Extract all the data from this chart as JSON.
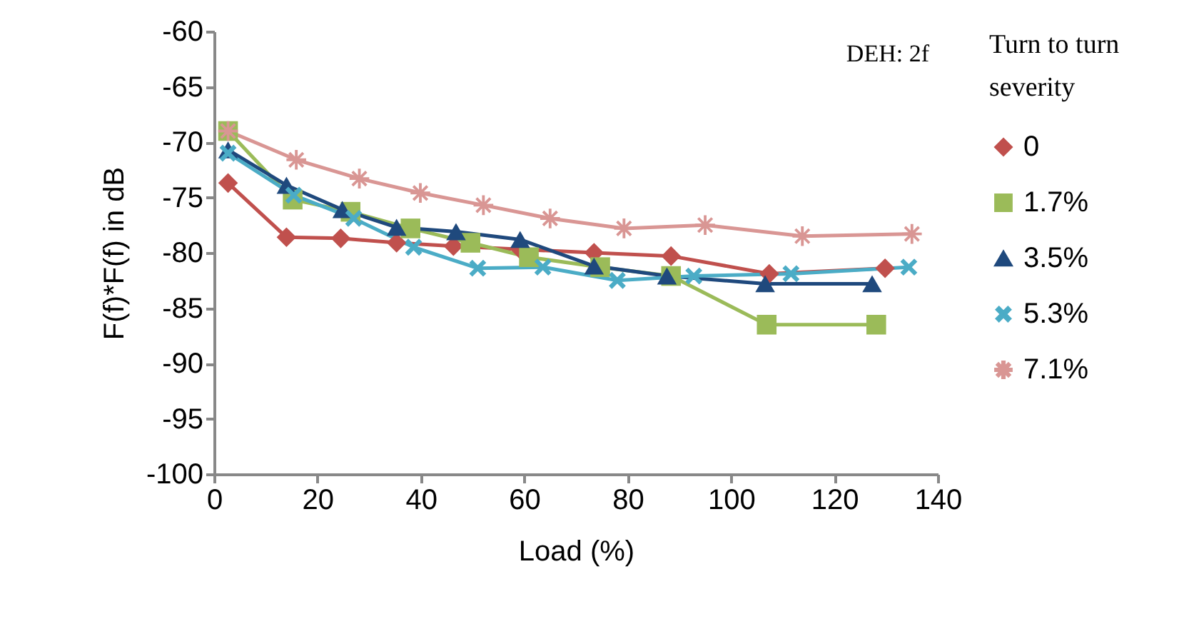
{
  "chart_data": {
    "type": "line",
    "xlabel": "Load (%)",
    "ylabel": "F(f)*F(f) in dB",
    "legend_title": "Turn to turn severity",
    "annotations": [
      "DEH: 2f"
    ],
    "xlim": [
      0,
      140
    ],
    "xticks": [
      0,
      20,
      40,
      60,
      80,
      100,
      120,
      140
    ],
    "ylim": [
      -100,
      -60
    ],
    "yticks": [
      -100,
      -95,
      -90,
      -85,
      -80,
      -75,
      -70,
      -65,
      -60
    ],
    "grid": false,
    "legend": "right",
    "series": [
      {
        "name": "0",
        "color": "#c0504d",
        "marker": "diamond",
        "x": [
          2.7,
          14.0,
          24.5,
          35.3,
          46.3,
          59.2,
          73.5,
          88.4,
          107.4,
          129.8
        ],
        "values": [
          -73.7,
          -78.6,
          -78.7,
          -79.1,
          -79.4,
          -79.7,
          -80.0,
          -80.3,
          -81.9,
          -81.4
        ]
      },
      {
        "name": "1.7%",
        "color": "#9bbb59",
        "marker": "square",
        "x": [
          2.7,
          15.2,
          26.4,
          38.0,
          49.6,
          60.9,
          74.7,
          88.4,
          106.9,
          128.1
        ],
        "values": [
          -69.0,
          -75.2,
          -76.3,
          -77.8,
          -79.1,
          -80.4,
          -81.3,
          -82.1,
          -86.5,
          -86.5
        ]
      },
      {
        "name": "3.5%",
        "color": "#1f497d",
        "marker": "triangle",
        "x": [
          2.7,
          14.0,
          24.8,
          35.3,
          46.8,
          59.2,
          73.5,
          87.6,
          106.6,
          127.3
        ],
        "values": [
          -70.7,
          -73.9,
          -76.1,
          -77.7,
          -78.1,
          -78.8,
          -81.2,
          -82.1,
          -82.8,
          -82.8
        ]
      },
      {
        "name": "5.3%",
        "color": "#4bacc6",
        "marker": "cross",
        "x": [
          2.7,
          15.4,
          27.0,
          38.6,
          51.0,
          63.6,
          78.0,
          92.8,
          111.6,
          134.4
        ],
        "values": [
          -71.0,
          -74.8,
          -76.9,
          -79.5,
          -81.4,
          -81.3,
          -82.5,
          -82.1,
          -81.9,
          -81.3
        ]
      },
      {
        "name": "7.1%",
        "color": "#d99694",
        "marker": "star",
        "x": [
          2.7,
          15.9,
          28.1,
          39.9,
          52.1,
          65.0,
          79.3,
          95.0,
          113.8,
          135.0
        ],
        "values": [
          -69.0,
          -71.6,
          -73.3,
          -74.6,
          -75.7,
          -76.9,
          -77.8,
          -77.5,
          -78.5,
          -78.3
        ]
      }
    ]
  }
}
